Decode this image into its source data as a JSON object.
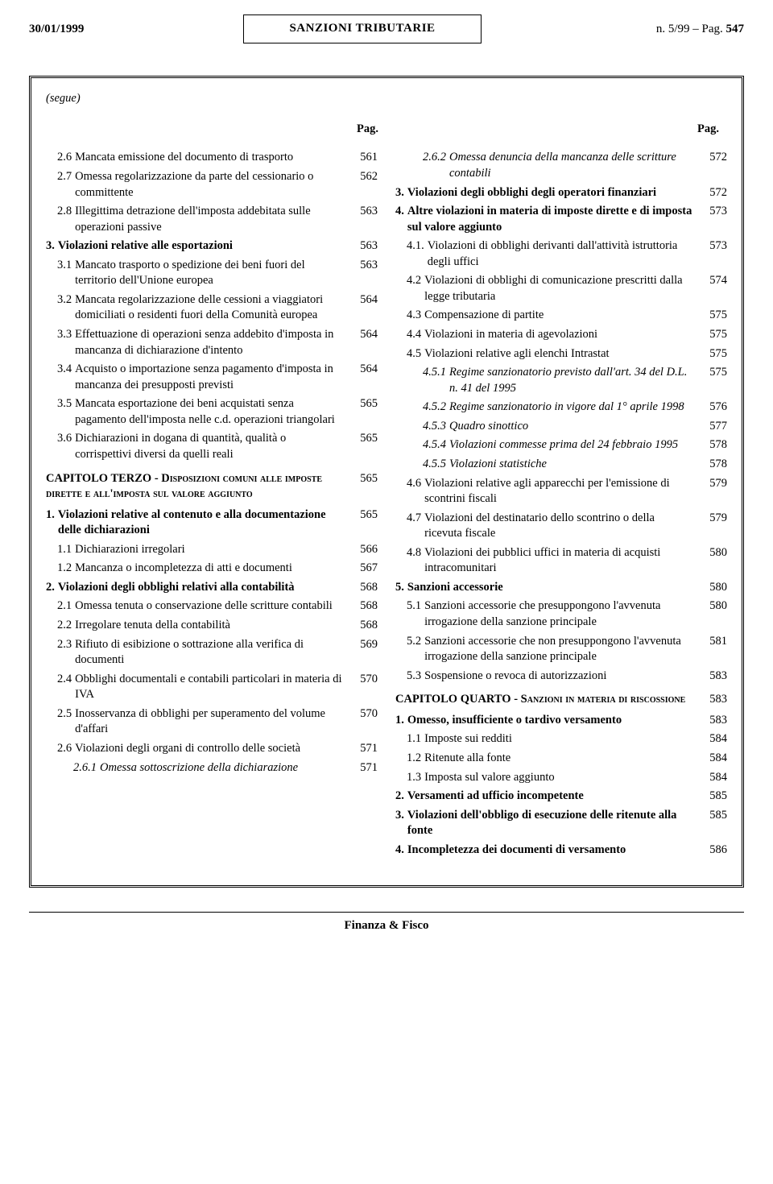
{
  "header": {
    "date": "30/01/1999",
    "center": "SANZIONI TRIBUTARIE",
    "right_issue": "n. 5/99 – Pag. ",
    "right_page": "547"
  },
  "segue": "(segue)",
  "pag_label": "Pag.",
  "footer": "Finanza & Fisco",
  "left": [
    {
      "num": "2.6",
      "label": "Mancata emissione del documento di trasporto",
      "page": "561",
      "indent": 1
    },
    {
      "num": "2.7",
      "label": "Omessa regolarizzazione da parte del cessionario o committente",
      "page": "562",
      "indent": 1
    },
    {
      "num": "2.8",
      "label": "Illegittima detrazione dell'imposta addebitata sulle operazioni passive",
      "page": "563",
      "indent": 1
    },
    {
      "num": "3.",
      "label": "Violazioni relative alle esportazioni",
      "page": "563",
      "indent": 0,
      "bold": true
    },
    {
      "num": "3.1",
      "label": "Mancato trasporto o spedizione dei beni fuori del territorio dell'Unione europea",
      "page": "563",
      "indent": 1
    },
    {
      "num": "3.2",
      "label": "Mancata regolarizzazione delle cessioni a viaggiatori domiciliati o residenti fuori della Comunità europea",
      "page": "564",
      "indent": 1
    },
    {
      "num": "3.3",
      "label": "Effettuazione di operazioni senza addebito d'imposta in mancanza di dichiarazione d'intento",
      "page": "564",
      "indent": 1
    },
    {
      "num": "3.4",
      "label": "Acquisto o importazione senza pagamento d'imposta in mancanza dei presupposti previsti",
      "page": "564",
      "indent": 1
    },
    {
      "num": "3.5",
      "label": "Mancata esportazione dei beni acquistati senza pagamento dell'imposta nelle c.d. operazioni triangolari",
      "page": "565",
      "indent": 1
    },
    {
      "num": "3.6",
      "label": "Dichiarazioni in dogana di quantità, qualità o corrispettivi diversi da quelli reali",
      "page": "565",
      "indent": 1
    },
    {
      "type": "caphead",
      "label_html": "CAPITOLO TERZO - <span class=\"smallcaps\">Disposizioni comuni alle imposte dirette e all'imposta sul valore aggiunto</span>",
      "page": "565"
    },
    {
      "num": "1.",
      "label": "Violazioni relative al contenuto e alla documentazione delle dichiarazioni",
      "page": "565",
      "indent": 0,
      "bold": true
    },
    {
      "num": "1.1",
      "label": "Dichiarazioni irregolari",
      "page": "566",
      "indent": 1
    },
    {
      "num": "1.2",
      "label": "Mancanza o incompletezza di atti e documenti",
      "page": "567",
      "indent": 1
    },
    {
      "num": "2.",
      "label": "Violazioni degli obblighi relativi alla contabilità",
      "page": "568",
      "indent": 0,
      "bold": true
    },
    {
      "num": "2.1",
      "label": "Omessa tenuta o conservazione delle scritture contabili",
      "page": "568",
      "indent": 1
    },
    {
      "num": "2.2",
      "label": "Irregolare tenuta della contabilità",
      "page": "568",
      "indent": 1
    },
    {
      "num": "2.3",
      "label": "Rifiuto di esibizione o sottrazione alla verifica di documenti",
      "page": "569",
      "indent": 1
    },
    {
      "num": "2.4",
      "label": "Obblighi documentali e contabili particolari in materia di IVA",
      "page": "570",
      "indent": 1
    },
    {
      "num": "2.5",
      "label": "Inosservanza di obblighi per superamento del volume d'affari",
      "page": "570",
      "indent": 1
    },
    {
      "num": "2.6",
      "label": "Violazioni degli organi di controllo delle società",
      "page": "571",
      "indent": 1
    },
    {
      "num": "2.6.1",
      "label": "Omessa sottoscrizione della dichiarazione",
      "page": "571",
      "indent": 2,
      "italic": true
    }
  ],
  "right": [
    {
      "num": "2.6.2",
      "label": "Omessa denuncia della mancanza delle scritture contabili",
      "page": "572",
      "indent": 2,
      "italic": true
    },
    {
      "num": "3.",
      "label": "Violazioni degli obblighi degli operatori finanziari",
      "page": "572",
      "indent": 0,
      "bold": true
    },
    {
      "num": "4.",
      "label": "Altre violazioni in materia di imposte dirette e di imposta sul valore aggiunto",
      "page": "573",
      "indent": 0,
      "bold": true
    },
    {
      "num": "4.1.",
      "label": "Violazioni di obblighi derivanti dall'attività istruttoria degli uffici",
      "page": "573",
      "indent": 1
    },
    {
      "num": "4.2",
      "label": "Violazioni di obblighi di comunicazione prescritti dalla legge tributaria",
      "page": "574",
      "indent": 1
    },
    {
      "num": "4.3",
      "label": "Compensazione di partite",
      "page": "575",
      "indent": 1
    },
    {
      "num": "4.4",
      "label": "Violazioni in materia di agevolazioni",
      "page": "575",
      "indent": 1
    },
    {
      "num": "4.5",
      "label": "Violazioni relative agli elenchi Intrastat",
      "page": "575",
      "indent": 1
    },
    {
      "num": "4.5.1",
      "label": "Regime sanzionatorio previsto dall'art. 34 del D.L. n. 41 del 1995",
      "page": "575",
      "indent": 2,
      "italic": true
    },
    {
      "num": "4.5.2",
      "label": "Regime sanzionatorio in vigore dal 1° aprile 1998",
      "page": "576",
      "indent": 2,
      "italic": true
    },
    {
      "num": "4.5.3",
      "label": "Quadro sinottico",
      "page": "577",
      "indent": 2,
      "italic": true
    },
    {
      "num": "4.5.4",
      "label": "Violazioni commesse prima del 24 febbraio 1995",
      "page": "578",
      "indent": 2,
      "italic": true
    },
    {
      "num": "4.5.5",
      "label": "Violazioni statistiche",
      "page": "578",
      "indent": 2,
      "italic": true
    },
    {
      "num": "4.6",
      "label": "Violazioni relative agli apparecchi per l'emissione di scontrini fiscali",
      "page": "579",
      "indent": 1
    },
    {
      "num": "4.7",
      "label": "Violazioni del destinatario dello scontrino o della ricevuta fiscale",
      "page": "579",
      "indent": 1
    },
    {
      "num": "4.8",
      "label": "Violazioni dei pubblici uffici in materia di acquisti intracomunitari",
      "page": "580",
      "indent": 1
    },
    {
      "num": "5.",
      "label": "Sanzioni accessorie",
      "page": "580",
      "indent": 0,
      "bold": true
    },
    {
      "num": "5.1",
      "label": "Sanzioni accessorie che presuppongono l'avvenuta irrogazione della sanzione principale",
      "page": "580",
      "indent": 1
    },
    {
      "num": "5.2",
      "label": "Sanzioni accessorie che non presuppongono l'avvenuta irrogazione della sanzione principale",
      "page": "581",
      "indent": 1
    },
    {
      "num": "5.3",
      "label": "Sospensione o revoca di autorizzazioni",
      "page": "583",
      "indent": 1
    },
    {
      "type": "caphead",
      "label_html": "CAPITOLO QUARTO - <span class=\"smallcaps\">Sanzioni in materia di riscossione</span>",
      "page": "583"
    },
    {
      "num": "1.",
      "label": "Omesso, insufficiente o tardivo versamento",
      "page": "583",
      "indent": 0,
      "bold": true
    },
    {
      "num": "1.1",
      "label": "Imposte sui redditi",
      "page": "584",
      "indent": 1
    },
    {
      "num": "1.2",
      "label": "Ritenute alla fonte",
      "page": "584",
      "indent": 1
    },
    {
      "num": "1.3",
      "label": "Imposta sul valore aggiunto",
      "page": "584",
      "indent": 1
    },
    {
      "num": "2.",
      "label": "Versamenti ad ufficio incompetente",
      "page": "585",
      "indent": 0,
      "bold": true
    },
    {
      "num": "3.",
      "label": "Violazioni dell'obbligo di esecuzione delle ritenute alla fonte",
      "page": "585",
      "indent": 0,
      "bold": true
    },
    {
      "num": "4.",
      "label": "Incompletezza dei documenti di versamento",
      "page": "586",
      "indent": 0,
      "bold": true
    }
  ]
}
